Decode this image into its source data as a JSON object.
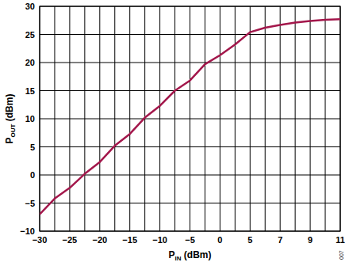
{
  "chart_data": {
    "type": "line",
    "x_label": "PIN (dBm)",
    "y_label": "POUT (dBm)",
    "annotations": [
      "007"
    ],
    "categories": [
      -30,
      null,
      -25,
      null,
      -20,
      null,
      -15,
      null,
      -10,
      null,
      -5,
      null,
      0,
      null,
      5,
      null,
      7,
      null,
      9,
      null,
      11
    ],
    "series": [
      {
        "name": "POUT",
        "color": "#a3174b",
        "values": [
          -7,
          -4.2,
          -2.3,
          0.2,
          2.3,
          5.2,
          7.3,
          10.2,
          12.3,
          15,
          16.8,
          19.7,
          21.3,
          23.2,
          25.4,
          26.2,
          26.7,
          27.1,
          27.4,
          27.6,
          27.7
        ]
      }
    ],
    "ylim": [
      -10,
      30
    ],
    "yticks": [
      -10,
      -5,
      0,
      5,
      10,
      15,
      20,
      25,
      30
    ],
    "grid": true
  }
}
